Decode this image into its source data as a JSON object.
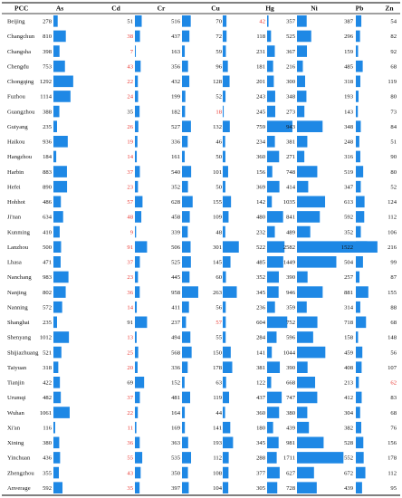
{
  "chart_data": {
    "type": "table",
    "columns": [
      "PCC",
      "As",
      "Cd",
      "Cr",
      "Cu",
      "Hg",
      "Ni",
      "Pb",
      "Zn"
    ],
    "colors": {
      "bar": "#1e88e5",
      "highlight": "#e8352e",
      "line": "#000000"
    },
    "rows": [
      {
        "city": "Beijing",
        "values": [
          278,
          51,
          516,
          70,
          42,
          357,
          387,
          54
        ],
        "red": [
          false,
          false,
          false,
          false,
          true,
          false,
          false,
          false
        ]
      },
      {
        "city": "Changchun",
        "values": [
          810,
          38,
          437,
          72,
          118,
          525,
          296,
          82
        ],
        "red": [
          false,
          true,
          false,
          false,
          false,
          false,
          false,
          false
        ]
      },
      {
        "city": "Changsha",
        "values": [
          398,
          7,
          163,
          59,
          231,
          367,
          159,
          92
        ],
        "red": [
          false,
          true,
          false,
          false,
          false,
          false,
          false,
          false
        ]
      },
      {
        "city": "Chengdu",
        "values": [
          753,
          43,
          356,
          96,
          181,
          216,
          485,
          68
        ],
        "red": [
          false,
          true,
          false,
          false,
          false,
          false,
          false,
          false
        ]
      },
      {
        "city": "Chongqing",
        "values": [
          1292,
          22,
          432,
          128,
          201,
          300,
          318,
          119
        ],
        "red": [
          false,
          true,
          false,
          false,
          false,
          false,
          false,
          false
        ]
      },
      {
        "city": "Fuzhou",
        "values": [
          1114,
          24,
          199,
          52,
          243,
          348,
          193,
          80
        ],
        "red": [
          false,
          true,
          false,
          false,
          false,
          false,
          false,
          false
        ]
      },
      {
        "city": "Guangzhou",
        "values": [
          388,
          35,
          182,
          18,
          245,
          273,
          143,
          73
        ],
        "red": [
          false,
          false,
          false,
          true,
          false,
          false,
          false,
          false
        ]
      },
      {
        "city": "Guiyang",
        "values": [
          235,
          26,
          527,
          132,
          759,
          943,
          348,
          84
        ],
        "red": [
          false,
          true,
          false,
          false,
          false,
          false,
          false,
          false
        ]
      },
      {
        "city": "Haikou",
        "values": [
          936,
          19,
          336,
          46,
          234,
          381,
          248,
          51
        ],
        "red": [
          false,
          true,
          false,
          false,
          false,
          false,
          false,
          false
        ]
      },
      {
        "city": "Hangzhou",
        "values": [
          184,
          14,
          161,
          50,
          360,
          271,
          316,
          90
        ],
        "red": [
          false,
          true,
          false,
          false,
          false,
          false,
          false,
          false
        ]
      },
      {
        "city": "Harbin",
        "values": [
          883,
          37,
          540,
          101,
          156,
          748,
          519,
          80
        ],
        "red": [
          false,
          true,
          false,
          false,
          false,
          false,
          false,
          false
        ]
      },
      {
        "city": "Hefei",
        "values": [
          890,
          23,
          352,
          50,
          369,
          414,
          347,
          52
        ],
        "red": [
          false,
          true,
          false,
          false,
          false,
          false,
          false,
          false
        ]
      },
      {
        "city": "Hohhot",
        "values": [
          486,
          57,
          628,
          155,
          142,
          1035,
          613,
          124
        ],
        "red": [
          false,
          true,
          false,
          false,
          false,
          false,
          false,
          false
        ]
      },
      {
        "city": "Ji'nan",
        "values": [
          634,
          48,
          458,
          109,
          480,
          841,
          592,
          112
        ],
        "red": [
          false,
          true,
          false,
          false,
          false,
          false,
          false,
          false
        ]
      },
      {
        "city": "Kunming",
        "values": [
          410,
          9,
          339,
          48,
          232,
          489,
          352,
          106
        ],
        "red": [
          false,
          true,
          false,
          false,
          false,
          false,
          false,
          false
        ]
      },
      {
        "city": "Lanzhou",
        "values": [
          500,
          91,
          506,
          301,
          522,
          2582,
          1522,
          216
        ],
        "red": [
          false,
          true,
          false,
          false,
          false,
          false,
          false,
          false
        ]
      },
      {
        "city": "Lhasa",
        "values": [
          471,
          37,
          525,
          145,
          485,
          1449,
          504,
          99
        ],
        "red": [
          false,
          true,
          false,
          false,
          false,
          false,
          false,
          false
        ]
      },
      {
        "city": "Nanchang",
        "values": [
          983,
          23,
          445,
          60,
          352,
          390,
          257,
          87
        ],
        "red": [
          false,
          true,
          false,
          false,
          false,
          false,
          false,
          false
        ]
      },
      {
        "city": "Nanjing",
        "values": [
          802,
          36,
          958,
          263,
          345,
          946,
          881,
          155
        ],
        "red": [
          false,
          true,
          false,
          false,
          false,
          false,
          false,
          false
        ]
      },
      {
        "city": "Nanning",
        "values": [
          572,
          14,
          411,
          56,
          236,
          359,
          314,
          88
        ],
        "red": [
          false,
          true,
          false,
          false,
          false,
          false,
          false,
          false
        ]
      },
      {
        "city": "Shanghai",
        "values": [
          235,
          91,
          237,
          57,
          604,
          752,
          718,
          68
        ],
        "red": [
          false,
          false,
          false,
          true,
          false,
          false,
          false,
          false
        ]
      },
      {
        "city": "Shenyang",
        "values": [
          1012,
          13,
          494,
          55,
          284,
          596,
          158,
          148
        ],
        "red": [
          false,
          true,
          false,
          false,
          false,
          false,
          false,
          false
        ]
      },
      {
        "city": "Shijiazhuang",
        "values": [
          521,
          25,
          568,
          150,
          141,
          1044,
          459,
          56
        ],
        "red": [
          false,
          true,
          false,
          false,
          false,
          false,
          false,
          false
        ]
      },
      {
        "city": "Taiyuan",
        "values": [
          318,
          20,
          336,
          178,
          381,
          390,
          408,
          107
        ],
        "red": [
          false,
          true,
          false,
          false,
          false,
          false,
          false,
          false
        ]
      },
      {
        "city": "Tianjin",
        "values": [
          422,
          69,
          152,
          63,
          122,
          668,
          213,
          62
        ],
        "red": [
          false,
          false,
          false,
          false,
          false,
          false,
          false,
          true
        ]
      },
      {
        "city": "Urumqi",
        "values": [
          482,
          37,
          481,
          119,
          437,
          747,
          412,
          83
        ],
        "red": [
          false,
          true,
          false,
          false,
          false,
          false,
          false,
          false
        ]
      },
      {
        "city": "Wuhan",
        "values": [
          1061,
          22,
          164,
          44,
          360,
          380,
          304,
          68
        ],
        "red": [
          false,
          true,
          false,
          false,
          false,
          false,
          false,
          false
        ]
      },
      {
        "city": "Xi'an",
        "values": [
          116,
          11,
          169,
          141,
          180,
          439,
          382,
          76
        ],
        "red": [
          false,
          true,
          false,
          false,
          false,
          false,
          false,
          false
        ]
      },
      {
        "city": "Xining",
        "values": [
          380,
          36,
          363,
          193,
          345,
          981,
          528,
          156
        ],
        "red": [
          false,
          true,
          false,
          false,
          false,
          false,
          false,
          false
        ]
      },
      {
        "city": "Yinchuan",
        "values": [
          436,
          55,
          535,
          112,
          288,
          1711,
          552,
          178
        ],
        "red": [
          false,
          true,
          false,
          false,
          false,
          false,
          false,
          false
        ]
      },
      {
        "city": "Zhengzhou",
        "values": [
          355,
          43,
          350,
          108,
          377,
          627,
          672,
          112
        ],
        "red": [
          false,
          true,
          false,
          false,
          false,
          false,
          false,
          false
        ]
      },
      {
        "city": "Anverage",
        "values": [
          592,
          35,
          397,
          104,
          305,
          728,
          439,
          95
        ],
        "red": [
          false,
          true,
          false,
          false,
          false,
          false,
          false,
          false
        ]
      }
    ],
    "column_max": [
      1300,
      95,
      960,
      305,
      760,
      2600,
      1530,
      220
    ]
  }
}
